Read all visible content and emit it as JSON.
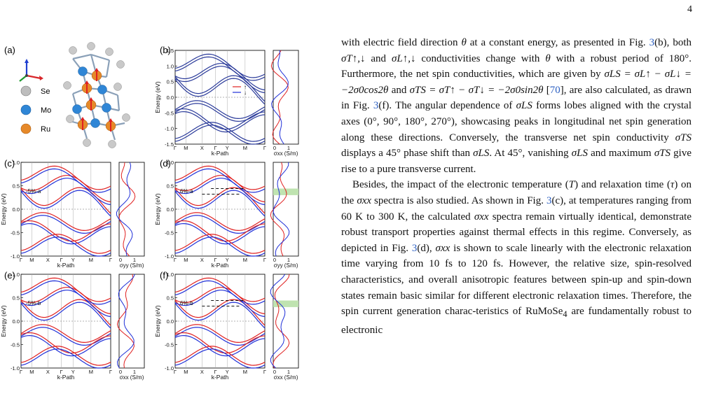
{
  "page_number": "4",
  "figure": {
    "panel_labels": [
      "(a)",
      "(b)",
      "(c)",
      "(d)",
      "(e)",
      "(f)"
    ],
    "crystal_axes": {
      "colors": {
        "z": "#1f3fd0",
        "x": "#d8262a",
        "y": "#1e9a2e"
      }
    },
    "atoms": [
      {
        "label": "Se",
        "color": "#bdbdbd"
      },
      {
        "label": "Mo",
        "color": "#2f86d6"
      },
      {
        "label": "Ru",
        "color": "#e6892a"
      }
    ],
    "kpath_labels": [
      "Γ",
      "M",
      "X",
      "Γ",
      "Y",
      "M",
      "Γ"
    ],
    "xlabel": "k-Path",
    "ylabel": "Energy (eV)",
    "legend": {
      "up": "↑",
      "down": "↓"
    },
    "sigma_label_xx": "σxx (S/m)",
    "sigma_label_yy": "σyy (S/m)",
    "sigma_ticks": [
      "0",
      "1"
    ],
    "strain_labels": {
      "c": "-5%-a",
      "d": "6%-a",
      "e": "-5%-b",
      "f": "6%-b"
    },
    "b_yticks": [
      "1.5",
      "1.0",
      "0.5",
      "0.0",
      "-0.5",
      "-1.0",
      "-1.5"
    ],
    "c_yticks": [
      "1.0",
      "0.5",
      "0.0",
      "-0.5",
      "-1.0"
    ],
    "colors": {
      "spin_up": "#e02020",
      "spin_down": "#2030d8",
      "band": "#2a3a9a",
      "highlight": "#bfe3b0"
    }
  },
  "text": {
    "p1_a": "with electric field direction ",
    "p1_b": " at a constant energy, as presented in Fig. ",
    "p1_c": "(b), both ",
    "p1_d": " and ",
    "p1_e": " conductivities change with ",
    "p1_f": " with a robust period of 180°. Furthermore, the net spin conductivities, which are given by ",
    "p1_g": " and ",
    "p1_h": " [",
    "p1_i": "], are also calculated, as drawn in Fig. ",
    "p1_j": "(f). The angular dependence of ",
    "p1_k": " forms lobes aligned with the crystal axes (0°, 90°, 180°, 270°), showcasing peaks in longitudinal net spin generation along these directions. Conversely, the transverse net spin conductivity ",
    "p1_l": " displays a 45° phase shift than ",
    "p1_m": ". At 45°, vanishing ",
    "p1_n": " and maximum ",
    "p1_o": " give rise to a pure transverse current.",
    "p2_a": "Besides, the impact of the electronic temperature (",
    "p2_b": ") and relaxation time (",
    "p2_c": ") on the ",
    "p2_d": " spectra is also studied. As shown in Fig. ",
    "p2_e": "(c), at temperatures ranging from 60 K to 300 K, the calculated ",
    "p2_f": " spectra remain virtually identical, demonstrate robust transport properties against thermal effects in this regime. Conversely, as depicted in Fig. ",
    "p2_g": "(d), ",
    "p2_h": " is shown to scale linearly with the electronic relaxation time varying from 10 fs to 120 fs. However, the relative size, spin-resolved characteristics, and overall anisotropic features between spin-up and spin-down states remain basic similar for different electronic relaxation times. Therefore, the spin current generation charac-teristics of RuMoSe",
    "p2_i": " are fundamentally robust to electronic",
    "fig_ref": "3",
    "cite": "70",
    "sym_theta": "θ",
    "sym_tau": "τ",
    "sym_T": "T",
    "sigma_T_updown": "σT↑,↓",
    "sigma_L_updown": "σL↑,↓",
    "eq_L": "σLS = σL↑ − σL↓ = −2σ0cos2θ",
    "eq_T": "σTS = σT↑ − σT↓ = −2σ0sin2θ",
    "sigma_LS": "σLS",
    "sigma_TS": "σTS",
    "sigma_xx": "σxx",
    "sub_4": "4"
  }
}
